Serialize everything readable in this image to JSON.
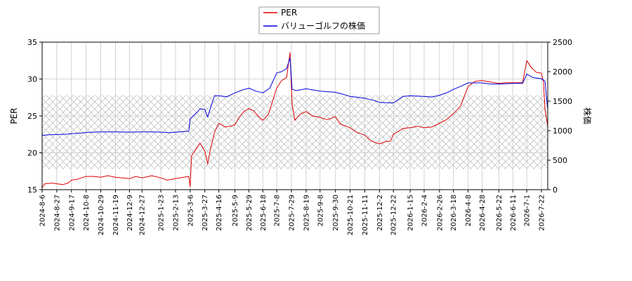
{
  "chart_data": {
    "type": "line",
    "title": "",
    "xlabel": "",
    "ylabel_left": "PER",
    "ylabel_right": "株価",
    "ylim_left": [
      15,
      35
    ],
    "ylim_right": [
      0,
      2500
    ],
    "yticks_left": [
      15,
      20,
      25,
      30,
      35
    ],
    "yticks_right": [
      0,
      500,
      1000,
      1500,
      2000,
      2500
    ],
    "x_start": "2024-08-06",
    "x_end": "2026-07-31",
    "x_ticks": [
      "2024-8-6",
      "2024-8-27",
      "2024-9-17",
      "2024-10-8",
      "2024-10-29",
      "2024-11-19",
      "2024-12-9",
      "2024-12-27",
      "2025-1-23",
      "2025-2-13",
      "2025-3-6",
      "2025-3-27",
      "2025-4-16",
      "2025-5-9",
      "2025-5-29",
      "2025-6-18",
      "2025-7-8",
      "2025-7-29",
      "2025-8-19",
      "2025-9-8",
      "2025-9-30",
      "2025-10-21",
      "2025-11-11",
      "2025-12-2",
      "2025-12-22",
      "2026-1-15",
      "2026-2-4",
      "2026-2-26",
      "2026-3-18",
      "2026-4-8",
      "2026-4-28",
      "2026-5-22",
      "2026-6-11",
      "2026-7-1",
      "2026-7-22"
    ],
    "grid": true,
    "legend_position": "top-center",
    "shaded_band_right": [
      350,
      1600
    ],
    "series": [
      {
        "name": "PER",
        "axis": "left",
        "color": "#dd0000",
        "points": [
          [
            "2024-08-06",
            15.3
          ],
          [
            "2024-08-10",
            15.8
          ],
          [
            "2024-08-20",
            15.9
          ],
          [
            "2024-08-27",
            15.8
          ],
          [
            "2024-09-05",
            15.7
          ],
          [
            "2024-09-12",
            15.9
          ],
          [
            "2024-09-17",
            16.3
          ],
          [
            "2024-09-25",
            16.4
          ],
          [
            "2024-10-01",
            16.6
          ],
          [
            "2024-10-08",
            16.8
          ],
          [
            "2024-10-18",
            16.8
          ],
          [
            "2024-10-29",
            16.7
          ],
          [
            "2024-11-08",
            16.9
          ],
          [
            "2024-11-19",
            16.7
          ],
          [
            "2024-11-29",
            16.6
          ],
          [
            "2024-12-09",
            16.5
          ],
          [
            "2024-12-18",
            16.8
          ],
          [
            "2024-12-27",
            16.6
          ],
          [
            "2025-01-10",
            16.9
          ],
          [
            "2025-01-23",
            16.6
          ],
          [
            "2025-02-01",
            16.3
          ],
          [
            "2025-02-13",
            16.5
          ],
          [
            "2025-02-25",
            16.7
          ],
          [
            "2025-03-04",
            16.8
          ],
          [
            "2025-03-06",
            15.4
          ],
          [
            "2025-03-08",
            19.6
          ],
          [
            "2025-03-15",
            20.6
          ],
          [
            "2025-03-20",
            21.3
          ],
          [
            "2025-03-27",
            20.2
          ],
          [
            "2025-03-31",
            18.5
          ],
          [
            "2025-04-04",
            20.5
          ],
          [
            "2025-04-10",
            22.8
          ],
          [
            "2025-04-16",
            24.0
          ],
          [
            "2025-04-25",
            23.5
          ],
          [
            "2025-05-02",
            23.6
          ],
          [
            "2025-05-09",
            23.8
          ],
          [
            "2025-05-15",
            24.8
          ],
          [
            "2025-05-22",
            25.6
          ],
          [
            "2025-05-29",
            26.0
          ],
          [
            "2025-06-05",
            25.7
          ],
          [
            "2025-06-12",
            24.9
          ],
          [
            "2025-06-18",
            24.4
          ],
          [
            "2025-06-26",
            25.2
          ],
          [
            "2025-07-02",
            27.0
          ],
          [
            "2025-07-08",
            28.8
          ],
          [
            "2025-07-15",
            29.8
          ],
          [
            "2025-07-22",
            30.2
          ],
          [
            "2025-07-27",
            33.6
          ],
          [
            "2025-07-30",
            26.5
          ],
          [
            "2025-08-03",
            24.4
          ],
          [
            "2025-08-10",
            25.2
          ],
          [
            "2025-08-19",
            25.6
          ],
          [
            "2025-08-28",
            25.0
          ],
          [
            "2025-09-08",
            24.8
          ],
          [
            "2025-09-18",
            24.5
          ],
          [
            "2025-09-30",
            24.9
          ],
          [
            "2025-10-07",
            23.9
          ],
          [
            "2025-10-21",
            23.4
          ],
          [
            "2025-10-30",
            22.8
          ],
          [
            "2025-11-11",
            22.4
          ],
          [
            "2025-11-20",
            21.6
          ],
          [
            "2025-12-02",
            21.2
          ],
          [
            "2025-12-10",
            21.5
          ],
          [
            "2025-12-18",
            21.6
          ],
          [
            "2025-12-22",
            22.5
          ],
          [
            "2026-01-05",
            23.3
          ],
          [
            "2026-01-15",
            23.4
          ],
          [
            "2026-01-26",
            23.6
          ],
          [
            "2026-02-04",
            23.4
          ],
          [
            "2026-02-15",
            23.5
          ],
          [
            "2026-02-26",
            24.0
          ],
          [
            "2026-03-08",
            24.5
          ],
          [
            "2026-03-18",
            25.3
          ],
          [
            "2026-03-28",
            26.3
          ],
          [
            "2026-04-03",
            27.8
          ],
          [
            "2026-04-08",
            29.0
          ],
          [
            "2026-04-18",
            29.7
          ],
          [
            "2026-04-28",
            29.8
          ],
          [
            "2026-05-10",
            29.6
          ],
          [
            "2026-05-22",
            29.4
          ],
          [
            "2026-06-01",
            29.5
          ],
          [
            "2026-06-11",
            29.5
          ],
          [
            "2026-06-25",
            29.5
          ],
          [
            "2026-07-01",
            32.5
          ],
          [
            "2026-07-08",
            31.5
          ],
          [
            "2026-07-15",
            30.9
          ],
          [
            "2026-07-22",
            30.8
          ],
          [
            "2026-07-25",
            29.5
          ],
          [
            "2026-07-27",
            26.0
          ],
          [
            "2026-07-31",
            23.6
          ]
        ]
      },
      {
        "name": "バリューゴルフの株価",
        "axis": "right",
        "color": "#0000dd",
        "points": [
          [
            "2024-08-06",
            920
          ],
          [
            "2024-08-15",
            930
          ],
          [
            "2024-08-27",
            935
          ],
          [
            "2024-09-10",
            940
          ],
          [
            "2024-09-17",
            950
          ],
          [
            "2024-10-01",
            960
          ],
          [
            "2024-10-08",
            970
          ],
          [
            "2024-10-29",
            980
          ],
          [
            "2024-11-19",
            980
          ],
          [
            "2024-12-09",
            975
          ],
          [
            "2024-12-27",
            980
          ],
          [
            "2025-01-10",
            980
          ],
          [
            "2025-01-23",
            975
          ],
          [
            "2025-02-05",
            965
          ],
          [
            "2025-02-13",
            975
          ],
          [
            "2025-03-04",
            990
          ],
          [
            "2025-03-06",
            1200
          ],
          [
            "2025-03-15",
            1300
          ],
          [
            "2025-03-20",
            1370
          ],
          [
            "2025-03-27",
            1360
          ],
          [
            "2025-03-31",
            1230
          ],
          [
            "2025-04-05",
            1420
          ],
          [
            "2025-04-10",
            1590
          ],
          [
            "2025-04-16",
            1590
          ],
          [
            "2025-04-28",
            1575
          ],
          [
            "2025-05-09",
            1640
          ],
          [
            "2025-05-20",
            1690
          ],
          [
            "2025-05-29",
            1720
          ],
          [
            "2025-06-08",
            1670
          ],
          [
            "2025-06-18",
            1640
          ],
          [
            "2025-06-28",
            1720
          ],
          [
            "2025-07-08",
            1980
          ],
          [
            "2025-07-15",
            2000
          ],
          [
            "2025-07-22",
            2050
          ],
          [
            "2025-07-27",
            2230
          ],
          [
            "2025-07-30",
            1700
          ],
          [
            "2025-08-05",
            1680
          ],
          [
            "2025-08-19",
            1710
          ],
          [
            "2025-09-08",
            1670
          ],
          [
            "2025-09-30",
            1650
          ],
          [
            "2025-10-10",
            1620
          ],
          [
            "2025-10-21",
            1580
          ],
          [
            "2025-11-11",
            1550
          ],
          [
            "2025-11-25",
            1510
          ],
          [
            "2025-12-02",
            1480
          ],
          [
            "2025-12-22",
            1470
          ],
          [
            "2026-01-05",
            1580
          ],
          [
            "2026-01-15",
            1590
          ],
          [
            "2026-02-04",
            1580
          ],
          [
            "2026-02-15",
            1570
          ],
          [
            "2026-02-26",
            1600
          ],
          [
            "2026-03-10",
            1650
          ],
          [
            "2026-03-18",
            1700
          ],
          [
            "2026-03-30",
            1760
          ],
          [
            "2026-04-08",
            1810
          ],
          [
            "2026-04-28",
            1810
          ],
          [
            "2026-05-10",
            1790
          ],
          [
            "2026-05-22",
            1790
          ],
          [
            "2026-06-11",
            1800
          ],
          [
            "2026-06-25",
            1800
          ],
          [
            "2026-07-01",
            1960
          ],
          [
            "2026-07-10",
            1900
          ],
          [
            "2026-07-22",
            1880
          ],
          [
            "2026-07-27",
            1840
          ],
          [
            "2026-07-31",
            1360
          ]
        ]
      }
    ]
  }
}
